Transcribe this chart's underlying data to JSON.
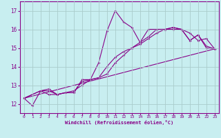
{
  "title": "",
  "xlabel": "Windchill (Refroidissement éolien,°C)",
  "ylabel": "",
  "bg_color": "#c8eef0",
  "grid_color": "#aacccc",
  "line_color": "#880088",
  "xlim": [
    -0.5,
    23.5
  ],
  "ylim": [
    11.5,
    17.5
  ],
  "xticks": [
    0,
    1,
    2,
    3,
    4,
    5,
    6,
    7,
    8,
    9,
    10,
    11,
    12,
    13,
    14,
    15,
    16,
    17,
    18,
    19,
    20,
    21,
    22,
    23
  ],
  "yticks": [
    12,
    13,
    14,
    15,
    16,
    17
  ],
  "lines": [
    {
      "x": [
        0,
        1,
        2,
        3,
        4,
        5,
        6,
        7,
        8,
        9,
        10,
        11,
        12,
        13,
        14,
        15,
        16,
        17,
        18,
        19,
        20,
        21,
        22,
        23
      ],
      "y": [
        12.3,
        11.9,
        12.7,
        12.5,
        12.5,
        12.6,
        12.6,
        13.3,
        13.3,
        14.2,
        15.9,
        17.0,
        16.4,
        16.1,
        15.3,
        16.0,
        16.0,
        16.0,
        16.1,
        16.0,
        15.4,
        15.7,
        15.0,
        14.95
      ]
    },
    {
      "x": [
        0,
        2,
        3,
        4,
        5,
        6,
        7,
        8,
        9,
        10,
        11,
        12,
        13,
        14,
        15,
        16,
        17,
        18,
        19,
        20,
        21,
        22,
        23
      ],
      "y": [
        12.3,
        12.7,
        12.8,
        12.5,
        12.6,
        12.7,
        13.0,
        13.3,
        13.4,
        13.6,
        14.2,
        14.6,
        15.0,
        15.3,
        15.6,
        16.0,
        16.0,
        16.1,
        16.0,
        15.4,
        15.7,
        15.1,
        14.95
      ]
    },
    {
      "x": [
        0,
        2,
        3,
        4,
        5,
        6,
        7,
        8,
        9,
        10,
        11,
        12,
        13,
        14,
        15,
        16,
        17,
        18,
        19,
        20,
        21,
        22,
        23
      ],
      "y": [
        12.3,
        12.7,
        12.7,
        12.5,
        12.6,
        12.6,
        13.2,
        13.3,
        13.4,
        14.0,
        14.5,
        14.8,
        15.0,
        15.2,
        15.5,
        15.8,
        16.0,
        16.0,
        16.0,
        15.8,
        15.4,
        15.5,
        14.95
      ]
    },
    {
      "x": [
        0,
        23
      ],
      "y": [
        12.3,
        14.95
      ]
    }
  ]
}
